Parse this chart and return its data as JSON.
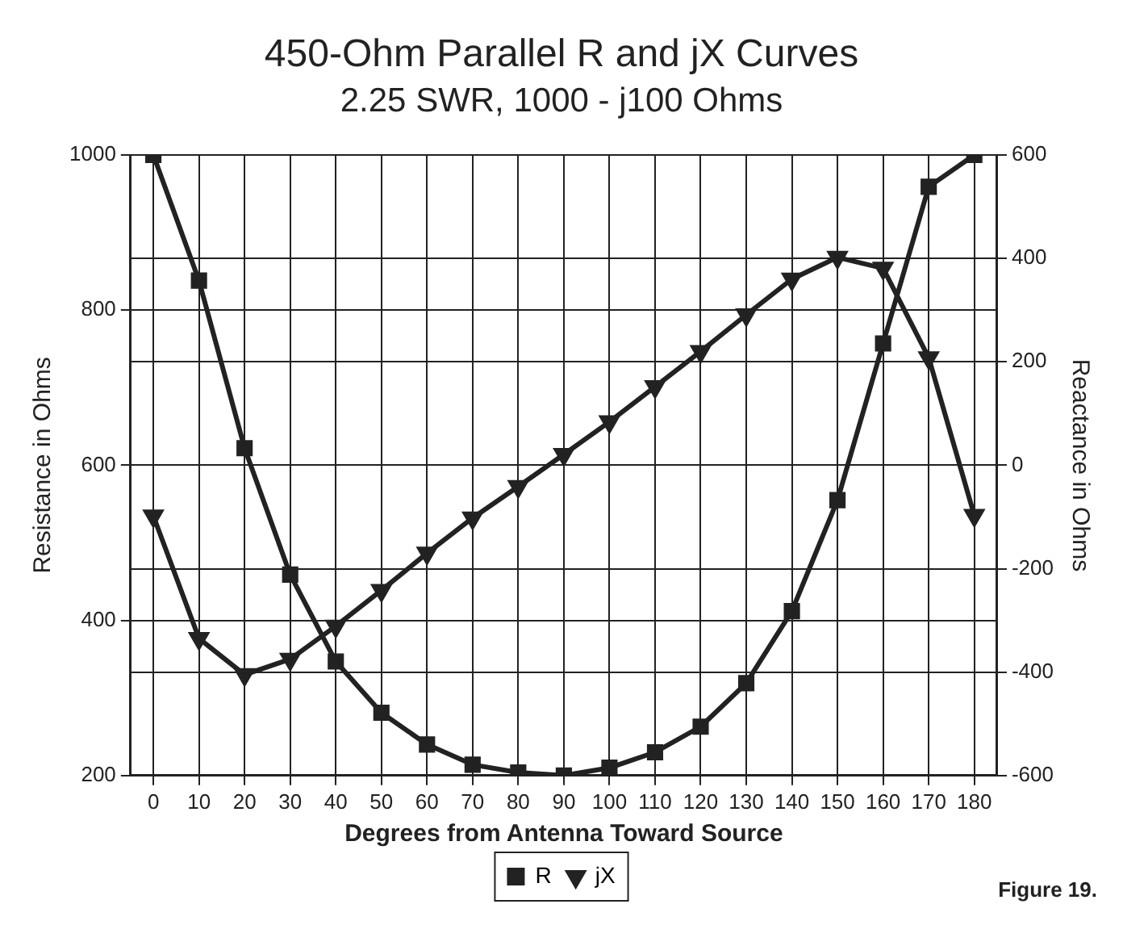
{
  "chart_data": {
    "type": "line",
    "title": "450-Ohm Parallel R and jX Curves",
    "subtitle": "2.25 SWR, 1000 - j100 Ohms",
    "xlabel": "Degrees from Antenna Toward Source",
    "ylabel": "Resistance in Ohms",
    "y2label": "Reactance in Ohms",
    "categories": [
      "0",
      "10",
      "20",
      "30",
      "40",
      "50",
      "60",
      "70",
      "80",
      "90",
      "100",
      "110",
      "120",
      "130",
      "140",
      "150",
      "160",
      "170",
      "180"
    ],
    "series": [
      {
        "name": "R",
        "color": "#222222",
        "marker": "square",
        "values": [
          1000,
          838,
          622,
          459,
          347,
          281,
          240,
          214,
          204,
          200,
          210,
          230,
          263,
          319,
          412,
          555,
          757,
          959,
          1000
        ]
      },
      {
        "name": "jX",
        "color": "#222222",
        "marker": "triangle",
        "axis": "y2",
        "values": [
          -98,
          -335,
          -405,
          -375,
          -311,
          -242,
          -170,
          -102,
          -41,
          21,
          84,
          152,
          220,
          291,
          360,
          402,
          381,
          208,
          -97
        ]
      }
    ],
    "ylim": [
      200,
      1000
    ],
    "yticks": [
      200,
      400,
      600,
      800,
      1000
    ],
    "y2lim": [
      -600,
      600
    ],
    "y2ticks": [
      -600,
      -400,
      -200,
      0,
      200,
      400,
      600
    ],
    "grid": true,
    "legend": "bottom",
    "annotations": [
      "Figure 19."
    ]
  }
}
